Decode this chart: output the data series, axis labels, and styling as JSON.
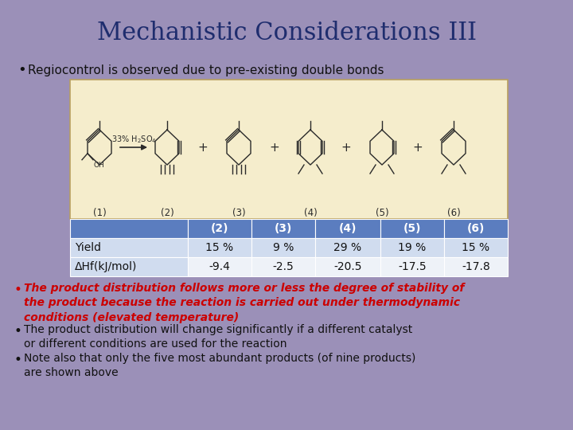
{
  "title": "Mechanistic Considerations III",
  "title_color": "#1f2d6e",
  "background_color": "#9b90b8",
  "bullet1": "Regiocontrol is observed due to pre-existing double bonds",
  "bullet1_color": "#111111",
  "table_header": [
    "",
    "(2)",
    "(3)",
    "(4)",
    "(5)",
    "(6)"
  ],
  "table_row1_label": "Yield",
  "table_row1_values": [
    "15 %",
    "9 %",
    "29 %",
    "19 %",
    "15 %"
  ],
  "table_row2_label": "ΔHf(kJ/mol)",
  "table_row2_values": [
    "-9.4",
    "-2.5",
    "-20.5",
    "-17.5",
    "-17.8"
  ],
  "table_header_bg": "#5b7dbf",
  "table_header_color": "#ffffff",
  "table_row1_bg": "#d0dcef",
  "table_row2_bg": "#eef2f8",
  "table_label_bg": "#d0dcef",
  "bullet2_text": "The product distribution follows more or less the degree of stability of\nthe product because the reaction is carried out under thermodynamic\nconditions (elevated temperature)",
  "bullet2_color": "#cc0000",
  "bullet3_text": "The product distribution will change significantly if a different catalyst\nor different conditions are used for the reaction",
  "bullet3_color": "#111111",
  "bullet4_text": "Note also that only the five most abundant products (of nine products)\nare shown above",
  "bullet4_color": "#111111",
  "image_placeholder_color": "#f5edcc",
  "image_border_color": "#b8a060"
}
